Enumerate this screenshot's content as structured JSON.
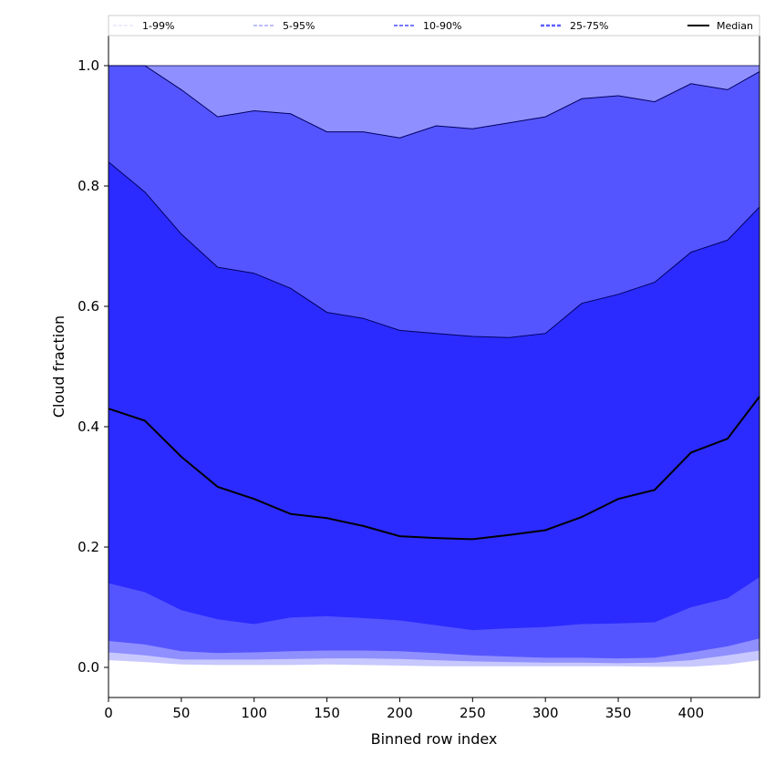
{
  "chart_data": {
    "type": "area",
    "xlabel": "Binned row index",
    "ylabel": "Cloud fraction",
    "xlim": [
      0,
      447
    ],
    "ylim": [
      -0.05,
      1.05
    ],
    "xticks": [
      0,
      50,
      100,
      150,
      200,
      250,
      300,
      350,
      400
    ],
    "yticks": [
      0.0,
      0.2,
      0.4,
      0.6,
      0.8,
      1.0
    ],
    "ytick_labels": [
      "0.0",
      "0.2",
      "0.4",
      "0.6",
      "0.8",
      "1.0"
    ],
    "grid": false,
    "legend_placement": "top",
    "x": [
      0,
      25,
      50,
      75,
      100,
      125,
      150,
      175,
      200,
      225,
      250,
      275,
      300,
      325,
      350,
      375,
      400,
      425,
      447
    ],
    "bands": [
      {
        "name": "1-99%",
        "color": "#c8c8ff",
        "legend_color": "#d8d8ff",
        "lower": [
          0.012,
          0.009,
          0.005,
          0.004,
          0.004,
          0.004,
          0.005,
          0.004,
          0.003,
          0.002,
          0.002,
          0.002,
          0.002,
          0.002,
          0.002,
          0.001,
          0.001,
          0.005,
          0.012
        ],
        "upper": [
          1,
          1,
          1,
          1,
          1,
          1,
          1,
          1,
          1,
          1,
          1,
          1,
          1,
          1,
          1,
          1,
          1,
          1,
          1
        ]
      },
      {
        "name": "5-95%",
        "color": "#8f8fff",
        "legend_color": "#a8a8ff",
        "lower": [
          0.025,
          0.02,
          0.013,
          0.013,
          0.013,
          0.014,
          0.015,
          0.015,
          0.014,
          0.012,
          0.01,
          0.009,
          0.008,
          0.008,
          0.007,
          0.008,
          0.012,
          0.02,
          0.028
        ],
        "upper": [
          1,
          1,
          1,
          1,
          1,
          1,
          1,
          1,
          1,
          1,
          1,
          1,
          1,
          1,
          1,
          1,
          1,
          1,
          1
        ]
      },
      {
        "name": "10-90%",
        "color": "#5555ff",
        "legend_color": "#7777ff",
        "lower": [
          0.044,
          0.038,
          0.027,
          0.024,
          0.025,
          0.027,
          0.028,
          0.028,
          0.027,
          0.024,
          0.02,
          0.018,
          0.016,
          0.016,
          0.015,
          0.016,
          0.025,
          0.035,
          0.048
        ],
        "upper": [
          1.0,
          1.0,
          0.96,
          0.915,
          0.925,
          0.92,
          0.89,
          0.89,
          0.88,
          0.9,
          0.895,
          0.905,
          0.915,
          0.945,
          0.95,
          0.94,
          0.97,
          0.96,
          0.99
        ]
      },
      {
        "name": "25-75%",
        "color": "#2b2bff",
        "legend_color": "#6060ff",
        "lower": [
          0.14,
          0.125,
          0.095,
          0.08,
          0.072,
          0.083,
          0.085,
          0.082,
          0.078,
          0.07,
          0.062,
          0.065,
          0.067,
          0.072,
          0.073,
          0.075,
          0.1,
          0.115,
          0.15
        ],
        "upper": [
          0.84,
          0.79,
          0.72,
          0.665,
          0.655,
          0.63,
          0.59,
          0.58,
          0.56,
          0.555,
          0.55,
          0.548,
          0.555,
          0.605,
          0.62,
          0.64,
          0.69,
          0.71,
          0.765
        ]
      }
    ],
    "median": {
      "name": "Median",
      "color": "#000000",
      "values": [
        0.43,
        0.41,
        0.35,
        0.3,
        0.28,
        0.255,
        0.248,
        0.235,
        0.218,
        0.215,
        0.213,
        0.22,
        0.228,
        0.25,
        0.28,
        0.295,
        0.357,
        0.38,
        0.45
      ]
    }
  }
}
